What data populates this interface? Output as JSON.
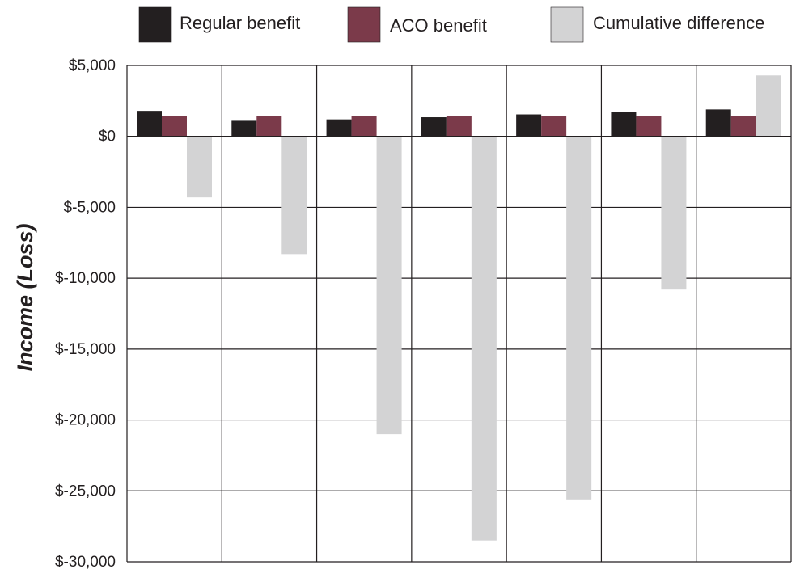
{
  "chart_data": {
    "type": "bar",
    "title": "",
    "xlabel": "",
    "ylabel": "Income (Loss)",
    "categories": [
      "",
      "",
      "",
      "",
      "",
      "",
      ""
    ],
    "ylim": [
      -30000,
      5000
    ],
    "yticks": [
      5000,
      0,
      -5000,
      -10000,
      -15000,
      -20000,
      -25000,
      -30000
    ],
    "ytick_labels": [
      "$5,000",
      "$0",
      "$-5,000",
      "$-10,000",
      "$-15,000",
      "$-20,000",
      "$-25,000",
      "$-30,000"
    ],
    "grid": true,
    "legend_position": "top",
    "series": [
      {
        "name": "Regular benefit",
        "color": "#231f20",
        "values": [
          1800,
          1100,
          1200,
          1350,
          1550,
          1750,
          1900
        ]
      },
      {
        "name": "ACO benefit",
        "color": "#7b3a4a",
        "values": [
          1450,
          1450,
          1450,
          1450,
          1450,
          1450,
          1450
        ]
      },
      {
        "name": "Cumulative difference",
        "color": "#d3d3d4",
        "values": [
          -4300,
          -8300,
          -21000,
          -28500,
          -25600,
          -10800,
          4300
        ]
      }
    ]
  }
}
